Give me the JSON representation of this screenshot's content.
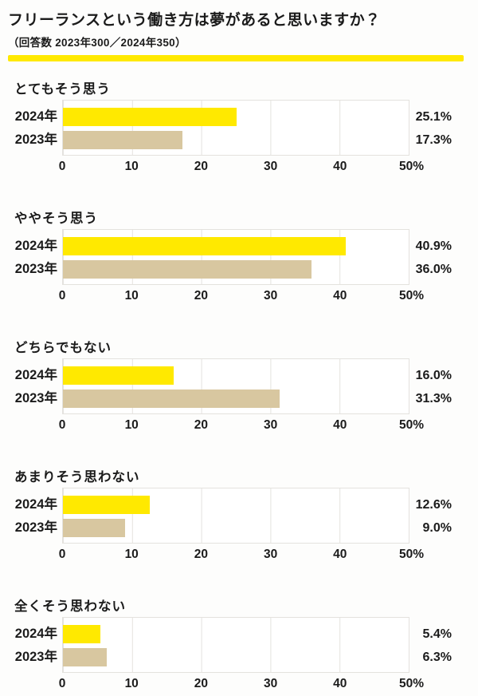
{
  "header": {
    "title": "フリーランスという働き方は夢があると思いますか？",
    "subtitle": "（回答数 2023年300／2024年350）"
  },
  "colors": {
    "accent_yellow": "#ffe900",
    "bar_2024": "#ffe900",
    "bar_2023": "#d8c7a0",
    "grid": "#e4e2de",
    "text": "#1b1b1b"
  },
  "axis": {
    "ticks": [
      "0",
      "10",
      "20",
      "30",
      "40",
      "50%"
    ],
    "min": 0,
    "max": 50
  },
  "chart_data": [
    {
      "type": "bar",
      "orientation": "horizontal",
      "title": "とてもそう思う",
      "xlim": [
        0,
        50
      ],
      "tick_labels": [
        "0",
        "10",
        "20",
        "30",
        "40",
        "50%"
      ],
      "series": [
        {
          "name": "2024年",
          "value": 25.1,
          "display": "25.1%"
        },
        {
          "name": "2023年",
          "value": 17.3,
          "display": "17.3%"
        }
      ]
    },
    {
      "type": "bar",
      "orientation": "horizontal",
      "title": "ややそう思う",
      "xlim": [
        0,
        50
      ],
      "tick_labels": [
        "0",
        "10",
        "20",
        "30",
        "40",
        "50%"
      ],
      "series": [
        {
          "name": "2024年",
          "value": 40.9,
          "display": "40.9%"
        },
        {
          "name": "2023年",
          "value": 36.0,
          "display": "36.0%"
        }
      ]
    },
    {
      "type": "bar",
      "orientation": "horizontal",
      "title": "どちらでもない",
      "xlim": [
        0,
        50
      ],
      "tick_labels": [
        "0",
        "10",
        "20",
        "30",
        "40",
        "50%"
      ],
      "series": [
        {
          "name": "2024年",
          "value": 16.0,
          "display": "16.0%"
        },
        {
          "name": "2023年",
          "value": 31.3,
          "display": "31.3%"
        }
      ]
    },
    {
      "type": "bar",
      "orientation": "horizontal",
      "title": "あまりそう思わない",
      "xlim": [
        0,
        50
      ],
      "tick_labels": [
        "0",
        "10",
        "20",
        "30",
        "40",
        "50%"
      ],
      "series": [
        {
          "name": "2024年",
          "value": 12.6,
          "display": "12.6%"
        },
        {
          "name": "2023年",
          "value": 9.0,
          "display": "9.0%"
        }
      ]
    },
    {
      "type": "bar",
      "orientation": "horizontal",
      "title": "全くそう思わない",
      "xlim": [
        0,
        50
      ],
      "tick_labels": [
        "0",
        "10",
        "20",
        "30",
        "40",
        "50%"
      ],
      "series": [
        {
          "name": "2024年",
          "value": 5.4,
          "display": "5.4%"
        },
        {
          "name": "2023年",
          "value": 6.3,
          "display": "6.3%"
        }
      ]
    }
  ]
}
